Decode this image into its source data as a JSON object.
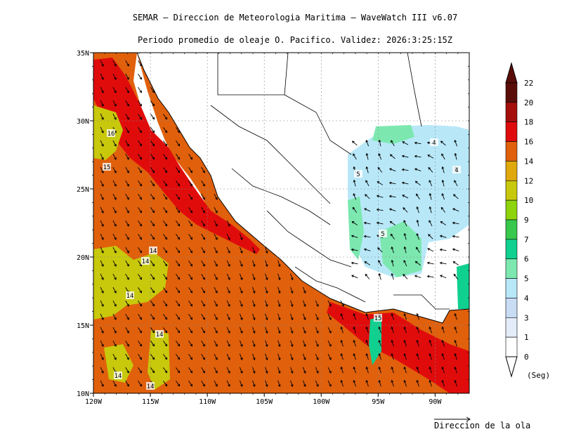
{
  "header": {
    "title": "SEMAR — Direccion de Meteorologia Maritima — WaveWatch III v6.07",
    "subtitle": "Periodo promedio de oleaje O. Pacifico. Validez: 2026:3:25:15Z"
  },
  "axes": {
    "x_ticks": [
      "120W",
      "115W",
      "110W",
      "105W",
      "100W",
      "95W",
      "90W"
    ],
    "y_ticks": [
      "35N",
      "30N",
      "25N",
      "20N",
      "15N",
      "10N"
    ]
  },
  "colorbar": {
    "levels": [
      "22",
      "20",
      "18",
      "16",
      "14",
      "12",
      "10",
      "9",
      "7",
      "6",
      "5",
      "4",
      "3",
      "1",
      "0"
    ],
    "colors": [
      "#5a0d08",
      "#a40f0c",
      "#e00c0c",
      "#e0600c",
      "#e0a80c",
      "#c8c80c",
      "#8ed40c",
      "#38c84c",
      "#10d090",
      "#7ce8b0",
      "#b8e8f8",
      "#c8dcf4",
      "#e4ecfa",
      "#ffffff"
    ],
    "unit": "(Seg)"
  },
  "legend": {
    "direction_label": "Direccion de la ola"
  },
  "contour_labels": [
    "16",
    "15",
    "14",
    "14",
    "14",
    "14",
    "14",
    "14",
    "15",
    "5",
    "5",
    "4",
    "4"
  ],
  "colors": {
    "red": "#e00c0c",
    "orange": "#e0600c",
    "yellow": "#c8c80c",
    "lightblue": "#b8e8f8",
    "teal": "#7ce8b0",
    "green": "#10d090"
  }
}
